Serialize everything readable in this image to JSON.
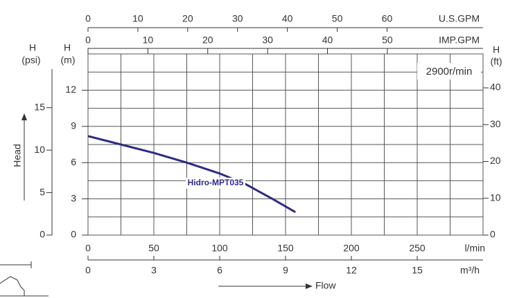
{
  "chart_data": {
    "type": "line",
    "annotation": "2900r/min",
    "xlabel": "l/min",
    "xlim": [
      0,
      300
    ],
    "xticks": [
      0,
      50,
      100,
      150,
      200,
      250
    ],
    "xtitle": "Flow",
    "ytitle": "Head",
    "ylabel": "H",
    "yunit": "(m)",
    "ylim": [
      0,
      15
    ],
    "yticks": [
      0,
      3,
      6,
      9,
      12
    ],
    "grid": true,
    "x_top1": {
      "label": "U.S.GPM",
      "lim": [
        0,
        79.26
      ],
      "ticks": [
        0,
        10,
        20,
        30,
        40,
        50,
        60
      ]
    },
    "x_top2": {
      "label": "IMP.GPM",
      "lim": [
        0,
        65.99
      ],
      "ticks": [
        0,
        10,
        20,
        30,
        40,
        50
      ]
    },
    "x_bottom2": {
      "label": "m³/h",
      "lim": [
        0,
        18
      ],
      "ticks": [
        0,
        3,
        6,
        9,
        12,
        15
      ]
    },
    "y_left2": {
      "label": "H",
      "unit": "(psi)",
      "lim": [
        0,
        21.33
      ],
      "ticks": [
        0,
        5,
        10,
        15
      ]
    },
    "y_right": {
      "label": "H",
      "unit": "(ft)",
      "lim": [
        0,
        49.21
      ],
      "ticks": [
        0,
        10,
        20,
        30,
        40
      ]
    },
    "series": [
      {
        "name": "Hidro-MPT035",
        "color": "#2e2a85",
        "x": [
          0,
          25,
          50,
          75,
          100,
          120,
          140,
          157.5
        ],
        "values": [
          8.2,
          7.5,
          6.8,
          6.0,
          5.1,
          4.2,
          3.0,
          1.9
        ]
      }
    ]
  }
}
